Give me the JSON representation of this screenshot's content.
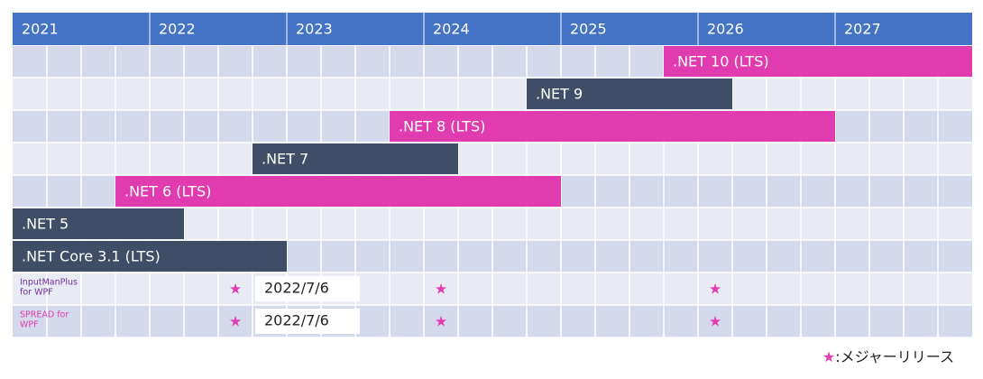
{
  "chart_data": {
    "type": "gantt",
    "xlim": [
      2021,
      2028
    ],
    "xticks": [
      2021,
      2022,
      2023,
      2024,
      2025,
      2026,
      2027
    ],
    "tasks": [
      {
        "name": ".NET 10 (LTS)",
        "start": 2025.75,
        "end": 2028,
        "color": "#e03cb0"
      },
      {
        "name": ".NET 9",
        "start": 2024.75,
        "end": 2026.25,
        "color": "#3f4e66"
      },
      {
        "name": ".NET 8 (LTS)",
        "start": 2023.75,
        "end": 2027,
        "color": "#e03cb0"
      },
      {
        "name": ".NET 7",
        "start": 2022.75,
        "end": 2024.25,
        "color": "#3f4e66"
      },
      {
        "name": ".NET 6 (LTS)",
        "start": 2021.75,
        "end": 2025,
        "color": "#e03cb0"
      },
      {
        "name": ".NET 5",
        "start": 2021,
        "end": 2022.25,
        "color": "#3f4e66"
      },
      {
        "name": ".NET Core 3.1 (LTS)",
        "start": 2021,
        "end": 2023,
        "color": "#3f4e66"
      }
    ],
    "milestones": [
      {
        "label_lines": [
          "InputManPlus",
          "for WPF"
        ],
        "color": "#7030a0",
        "releases": [
          2022.625,
          2024.125,
          2026.125
        ],
        "date_label": "2022/7/6"
      },
      {
        "label_lines": [
          "SPREAD for",
          "WPF"
        ],
        "color": "#e03cb0",
        "releases": [
          2022.625,
          2024.125,
          2026.125
        ],
        "date_label": "2022/7/6"
      }
    ],
    "legend": {
      "symbol": "★",
      "text": ":メジャーリリース",
      "color": "#e03cb0"
    }
  }
}
